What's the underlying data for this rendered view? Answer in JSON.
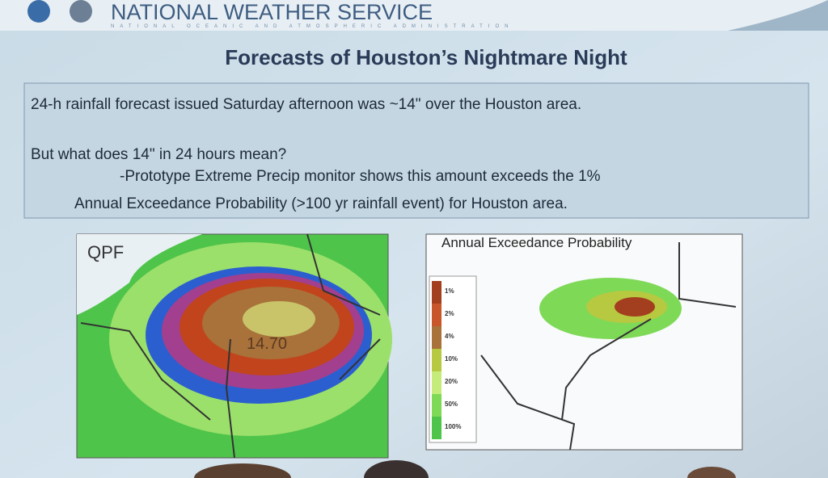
{
  "header": {
    "title": "NATIONAL WEATHER SERVICE",
    "subtitle": "NATIONAL OCEANIC AND ATMOSPHERIC ADMINISTRATION"
  },
  "slide": {
    "title": "Forecasts of Houston’s Nightmare Night",
    "text_lines": [
      "24-h rainfall forecast issued Saturday afternoon was ~14\" over the Houston area.",
      "But what does 14\" in 24 hours mean?",
      "-Prototype Extreme Precip monitor shows this amount exceeds the 1%",
      "Annual Exceedance Probability (>100 yr rainfall event) for Houston area."
    ]
  },
  "left_map": {
    "label": "QPF",
    "annotation": "14.70"
  },
  "right_map": {
    "title": "Annual Exceedance Probability",
    "legend": [
      "1%",
      "2%",
      "4%",
      "10%",
      "20%",
      "50%",
      "100%"
    ]
  }
}
